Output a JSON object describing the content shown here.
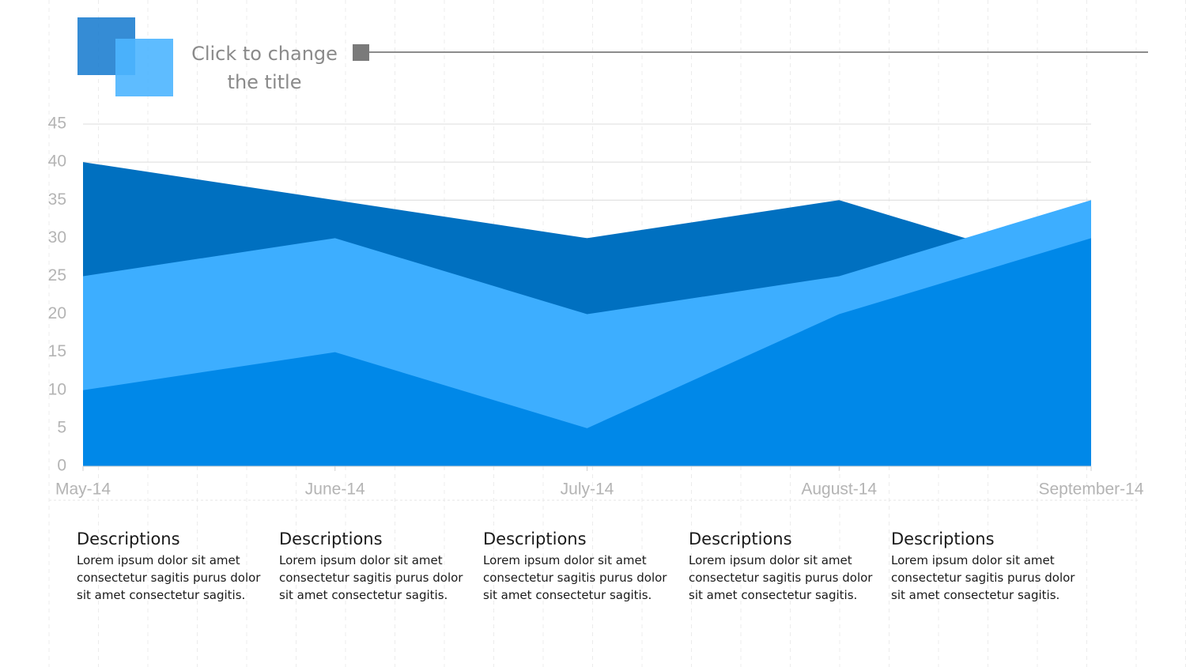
{
  "chart_data": {
    "type": "area",
    "title": "Click to change the title",
    "categories": [
      "May-14",
      "June-14",
      "July-14",
      "August-14",
      "September-14"
    ],
    "series": [
      {
        "color": "#0070c0",
        "values": [
          40,
          35,
          30,
          35,
          25
        ]
      },
      {
        "color": "#3daeff",
        "values": [
          25,
          30,
          20,
          25,
          35
        ]
      },
      {
        "color": "#0088e8",
        "values": [
          10,
          15,
          5,
          20,
          30
        ]
      }
    ],
    "ylim": [
      0,
      45
    ],
    "yticks": [
      0,
      5,
      10,
      15,
      20,
      25,
      30,
      35,
      40,
      45
    ],
    "grid": true
  },
  "descriptions": [
    {
      "title": "Descriptions",
      "text": "Lorem ipsum dolor sit amet consectetur sagitis purus dolor sit amet consectetur sagitis."
    },
    {
      "title": "Descriptions",
      "text": "Lorem ipsum dolor sit amet consectetur sagitis purus dolor sit amet consectetur sagitis."
    },
    {
      "title": "Descriptions",
      "text": "Lorem ipsum dolor sit amet consectetur sagitis purus dolor sit amet consectetur sagitis."
    },
    {
      "title": "Descriptions",
      "text": "Lorem ipsum dolor sit amet consectetur sagitis purus dolor sit amet consectetur sagitis."
    },
    {
      "title": "Descriptions",
      "text": "Lorem ipsum dolor sit amet consectetur sagitis purus dolor sit amet consectetur sagitis."
    }
  ]
}
